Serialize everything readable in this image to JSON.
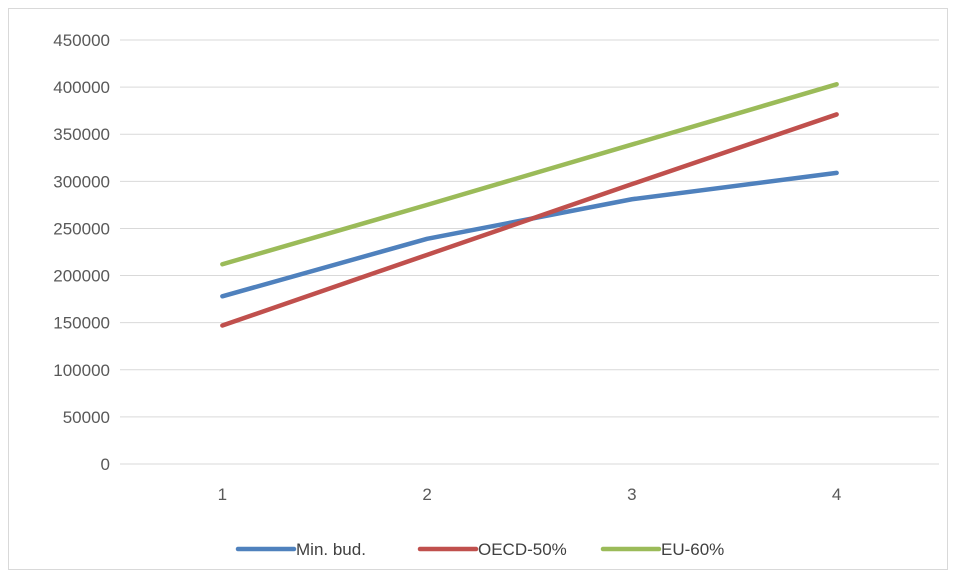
{
  "chart_data": {
    "type": "line",
    "title": "",
    "xlabel": "",
    "ylabel": "",
    "categories": [
      "1",
      "2",
      "3",
      "4"
    ],
    "ylim": [
      0,
      450000
    ],
    "yticks": [
      0,
      50000,
      100000,
      150000,
      200000,
      250000,
      300000,
      350000,
      400000,
      450000
    ],
    "ytick_labels": [
      "0",
      "50000",
      "100000",
      "150000",
      "200000",
      "250000",
      "300000",
      "350000",
      "400000",
      "450000"
    ],
    "grid": true,
    "legend_position": "bottom",
    "series": [
      {
        "name": "Min. bud.",
        "color": "#4f81bd",
        "values": [
          178000,
          239000,
          281000,
          309000
        ]
      },
      {
        "name": "OECD-50%",
        "color": "#c0504d",
        "values": [
          147000,
          222000,
          297000,
          371000
        ]
      },
      {
        "name": "EU-60%",
        "color": "#9bbb59",
        "values": [
          212000,
          275000,
          339000,
          403000
        ]
      }
    ]
  }
}
